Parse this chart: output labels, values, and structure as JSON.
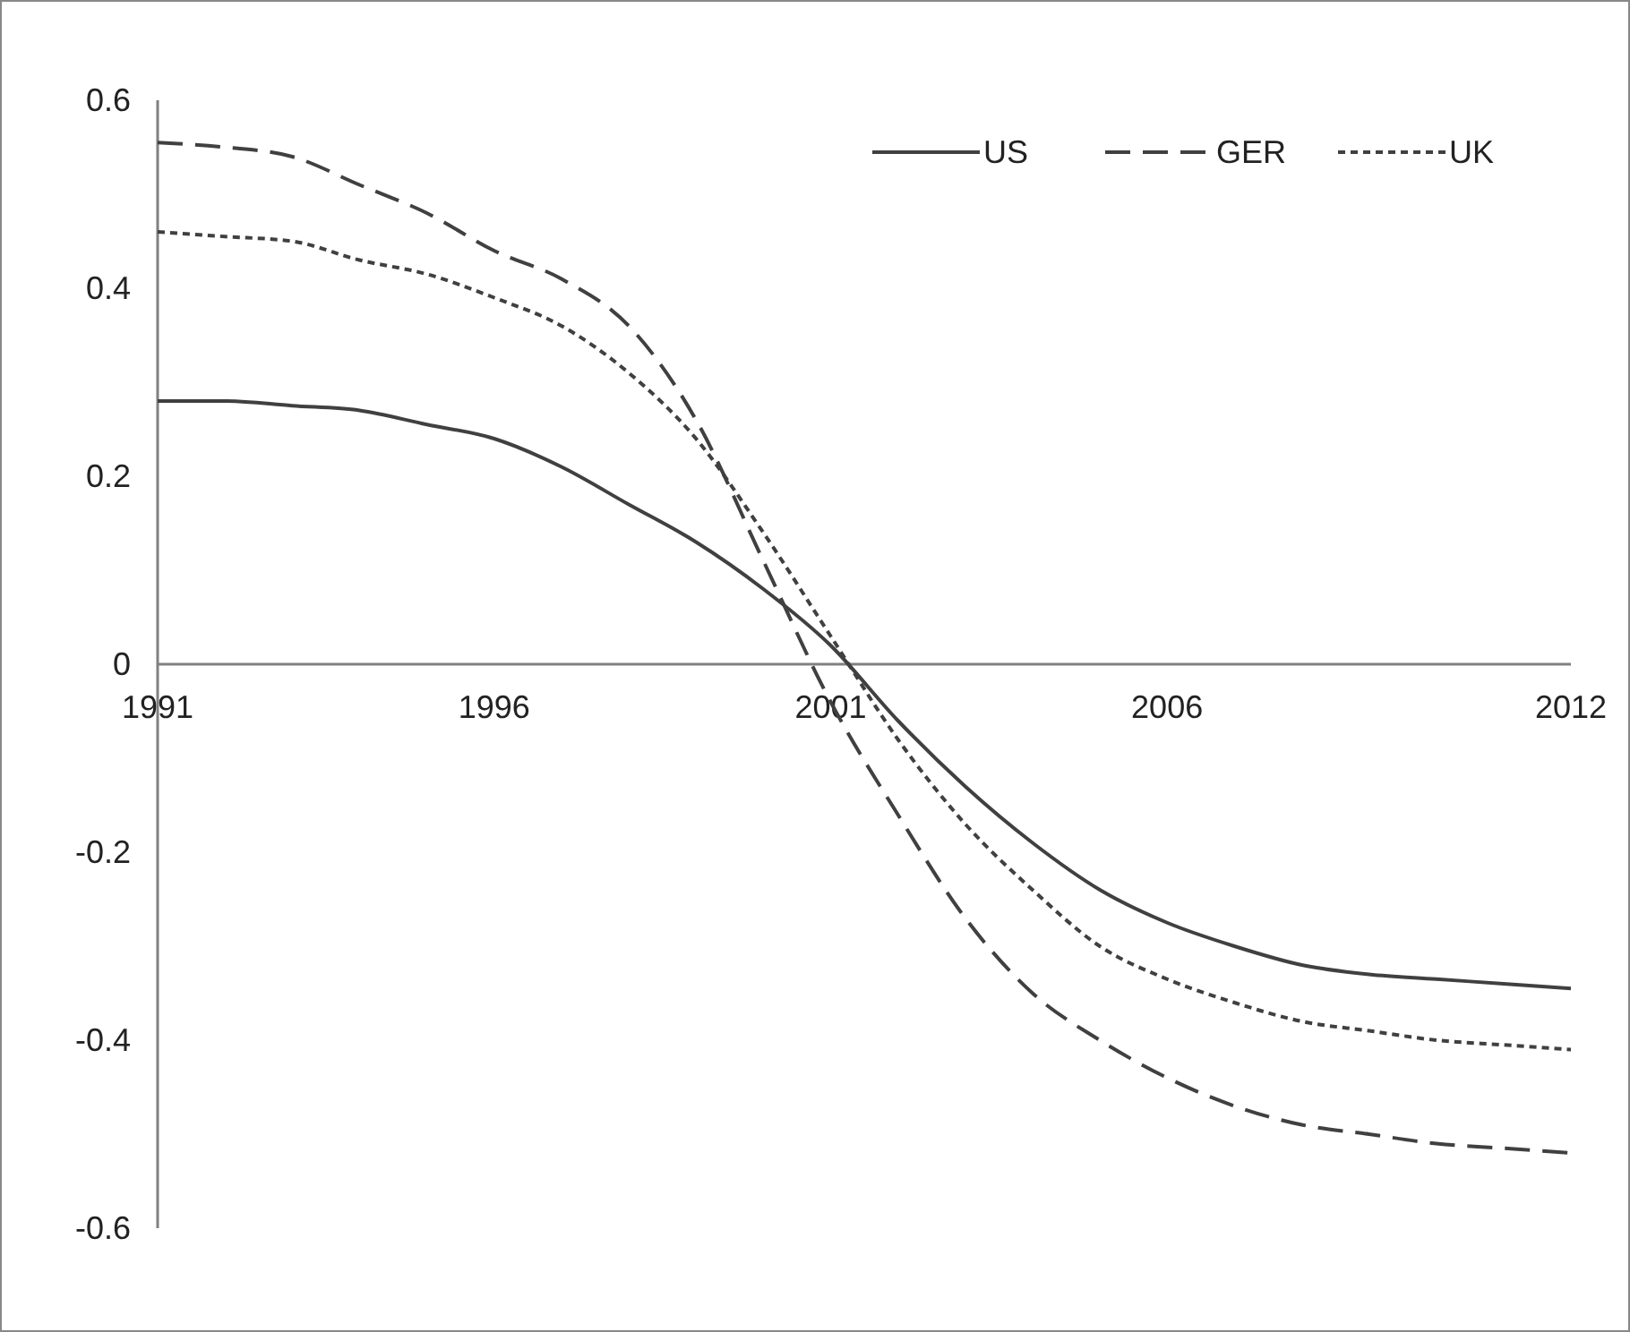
{
  "chart_data": {
    "type": "line",
    "x": [
      1991,
      1992,
      1993,
      1994,
      1995,
      1996,
      1997,
      1998,
      1999,
      2000,
      2001,
      2002,
      2003,
      2004,
      2005,
      2006,
      2007,
      2008,
      2009,
      2010,
      2011,
      2012
    ],
    "series": [
      {
        "name": "US",
        "color": "#404040",
        "line_style": "solid",
        "values": [
          0.28,
          0.28,
          0.275,
          0.27,
          0.255,
          0.24,
          0.21,
          0.17,
          0.13,
          0.08,
          0.02,
          -0.06,
          -0.13,
          -0.19,
          -0.24,
          -0.275,
          -0.3,
          -0.32,
          -0.33,
          -0.335,
          -0.34,
          -0.345
        ]
      },
      {
        "name": "GER",
        "color": "#404040",
        "line_style": "dashed",
        "values": [
          0.555,
          0.55,
          0.54,
          0.51,
          0.48,
          0.44,
          0.41,
          0.36,
          0.26,
          0.11,
          -0.04,
          -0.16,
          -0.27,
          -0.35,
          -0.4,
          -0.44,
          -0.47,
          -0.49,
          -0.5,
          -0.51,
          -0.515,
          -0.52
        ]
      },
      {
        "name": "UK",
        "color": "#404040",
        "line_style": "dotted",
        "values": [
          0.46,
          0.455,
          0.45,
          0.43,
          0.415,
          0.39,
          0.36,
          0.31,
          0.24,
          0.14,
          0.03,
          -0.08,
          -0.17,
          -0.24,
          -0.3,
          -0.335,
          -0.36,
          -0.38,
          -0.39,
          -0.4,
          -0.405,
          -0.41
        ]
      }
    ],
    "xlim": [
      1991,
      2012
    ],
    "xticks": [
      1991,
      1996,
      2001,
      2006,
      2012
    ],
    "ylim": [
      -0.6,
      0.6
    ],
    "yticks": [
      -0.6,
      -0.4,
      -0.2,
      0,
      0.2,
      0.4,
      0.6
    ],
    "grid": false,
    "legend": "top right",
    "marker": "none"
  }
}
